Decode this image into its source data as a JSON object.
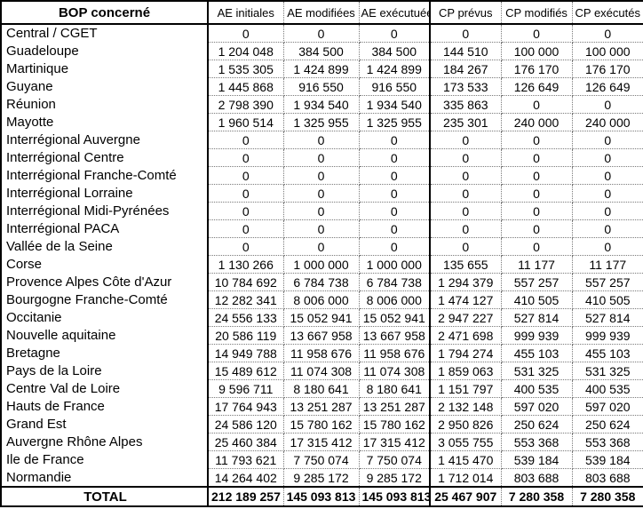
{
  "table": {
    "columns": [
      "BOP concerné",
      "AE initiales",
      "AE modifiées",
      "AE exécutuées",
      "CP prévus",
      "CP modifiés",
      "CP exécutés"
    ],
    "rows": [
      {
        "label": "Central / CGET",
        "values": [
          "0",
          "0",
          "0",
          "0",
          "0",
          "0"
        ]
      },
      {
        "label": "Guadeloupe",
        "values": [
          "1 204 048",
          "384 500",
          "384 500",
          "144 510",
          "100 000",
          "100 000"
        ]
      },
      {
        "label": "Martinique",
        "values": [
          "1 535 305",
          "1 424 899",
          "1 424 899",
          "184 267",
          "176 170",
          "176 170"
        ]
      },
      {
        "label": "Guyane",
        "values": [
          "1 445 868",
          "916 550",
          "916 550",
          "173 533",
          "126 649",
          "126 649"
        ]
      },
      {
        "label": "Réunion",
        "values": [
          "2 798 390",
          "1 934 540",
          "1 934 540",
          "335 863",
          "0",
          "0"
        ]
      },
      {
        "label": "Mayotte",
        "values": [
          "1 960 514",
          "1 325 955",
          "1 325 955",
          "235 301",
          "240 000",
          "240 000"
        ]
      },
      {
        "label": "Interrégional Auvergne",
        "values": [
          "0",
          "0",
          "0",
          "0",
          "0",
          "0"
        ]
      },
      {
        "label": "Interrégional Centre",
        "values": [
          "0",
          "0",
          "0",
          "0",
          "0",
          "0"
        ]
      },
      {
        "label": "Interrégional Franche-Comté",
        "values": [
          "0",
          "0",
          "0",
          "0",
          "0",
          "0"
        ]
      },
      {
        "label": "Interrégional Lorraine",
        "values": [
          "0",
          "0",
          "0",
          "0",
          "0",
          "0"
        ]
      },
      {
        "label": "Interrégional Midi-Pyrénées",
        "values": [
          "0",
          "0",
          "0",
          "0",
          "0",
          "0"
        ]
      },
      {
        "label": "Interrégional PACA",
        "values": [
          "0",
          "0",
          "0",
          "0",
          "0",
          "0"
        ]
      },
      {
        "label": "Vallée de la Seine",
        "values": [
          "0",
          "0",
          "0",
          "0",
          "0",
          "0"
        ]
      },
      {
        "label": "Corse",
        "values": [
          "1 130 266",
          "1 000 000",
          "1 000 000",
          "135 655",
          "11 177",
          "11 177"
        ]
      },
      {
        "label": "Provence Alpes Côte d'Azur",
        "values": [
          "10 784 692",
          "6 784 738",
          "6 784 738",
          "1 294 379",
          "557 257",
          "557 257"
        ]
      },
      {
        "label": "Bourgogne Franche-Comté",
        "values": [
          "12 282 341",
          "8 006 000",
          "8 006 000",
          "1 474 127",
          "410 505",
          "410 505"
        ]
      },
      {
        "label": "Occitanie",
        "values": [
          "24 556 133",
          "15 052 941",
          "15 052 941",
          "2 947 227",
          "527 814",
          "527 814"
        ]
      },
      {
        "label": "Nouvelle aquitaine",
        "values": [
          "20 586 119",
          "13 667 958",
          "13 667 958",
          "2 471 698",
          "999 939",
          "999 939"
        ]
      },
      {
        "label": "Bretagne",
        "values": [
          "14 949 788",
          "11 958 676",
          "11 958 676",
          "1 794 274",
          "455 103",
          "455 103"
        ]
      },
      {
        "label": "Pays de la Loire",
        "values": [
          "15 489 612",
          "11 074 308",
          "11 074 308",
          "1 859 063",
          "531 325",
          "531 325"
        ]
      },
      {
        "label": "Centre Val de Loire",
        "values": [
          "9 596 711",
          "8 180 641",
          "8 180 641",
          "1 151 797",
          "400 535",
          "400 535"
        ]
      },
      {
        "label": "Hauts de France",
        "values": [
          "17 764 943",
          "13 251 287",
          "13 251 287",
          "2 132 148",
          "597 020",
          "597 020"
        ]
      },
      {
        "label": "Grand Est",
        "values": [
          "24 586 120",
          "15 780 162",
          "15 780 162",
          "2 950 826",
          "250 624",
          "250 624"
        ]
      },
      {
        "label": "Auvergne Rhône Alpes",
        "values": [
          "25 460 384",
          "17 315 412",
          "17 315 412",
          "3 055 755",
          "553 368",
          "553 368"
        ]
      },
      {
        "label": "Ile de France",
        "values": [
          "11 793 621",
          "7 750 074",
          "7 750 074",
          "1 415 470",
          "539 184",
          "539 184"
        ]
      },
      {
        "label": "Normandie",
        "values": [
          "14 264 402",
          "9 285 172",
          "9 285 172",
          "1 712 014",
          "803 688",
          "803 688"
        ]
      }
    ],
    "total": {
      "label": "TOTAL",
      "values": [
        "212 189 257",
        "145 093 813",
        "145 093 813",
        "25 467 907",
        "7 280 358",
        "7 280 358"
      ]
    }
  },
  "colors": {
    "border": "#000000",
    "grid_dotted": "#7a7a7a",
    "background": "#ffffff",
    "text": "#000000"
  }
}
